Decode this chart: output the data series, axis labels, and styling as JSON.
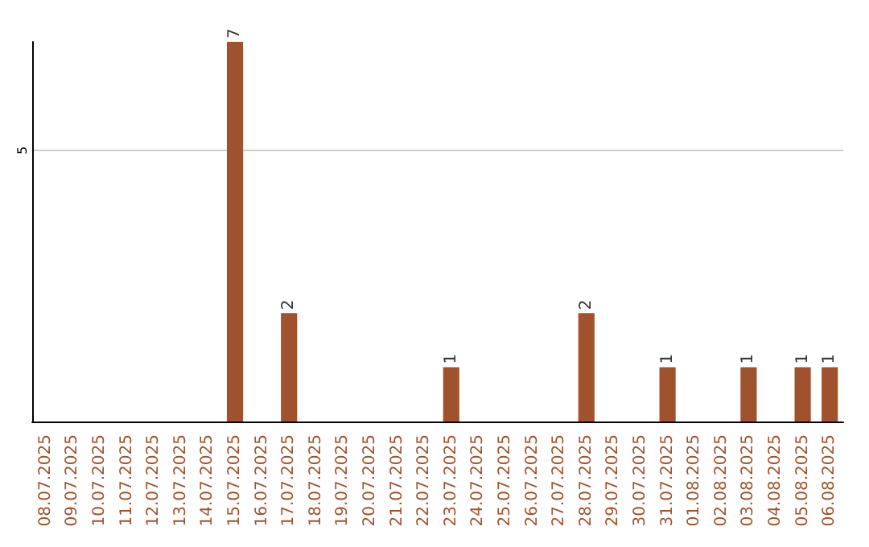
{
  "chart_data": {
    "type": "bar",
    "categories": [
      "08.07.2025",
      "09.07.2025",
      "10.07.2025",
      "11.07.2025",
      "12.07.2025",
      "13.07.2025",
      "14.07.2025",
      "15.07.2025",
      "16.07.2025",
      "17.07.2025",
      "18.07.2025",
      "19.07.2025",
      "20.07.2025",
      "21.07.2025",
      "22.07.2025",
      "23.07.2025",
      "24.07.2025",
      "25.07.2025",
      "26.07.2025",
      "27.07.2025",
      "28.07.2025",
      "29.07.2025",
      "30.07.2025",
      "31.07.2025",
      "01.08.2025",
      "02.08.2025",
      "03.08.2025",
      "04.08.2025",
      "05.08.2025",
      "06.08.2025"
    ],
    "values": [
      null,
      null,
      null,
      null,
      null,
      null,
      null,
      7,
      null,
      2,
      null,
      null,
      null,
      null,
      null,
      1,
      null,
      null,
      null,
      null,
      2,
      null,
      null,
      1,
      null,
      null,
      1,
      null,
      1,
      1
    ],
    "color": "#a0522d",
    "ylim": [
      0,
      7
    ],
    "yticks": [
      5
    ],
    "grid": "y",
    "data_labels": true
  }
}
